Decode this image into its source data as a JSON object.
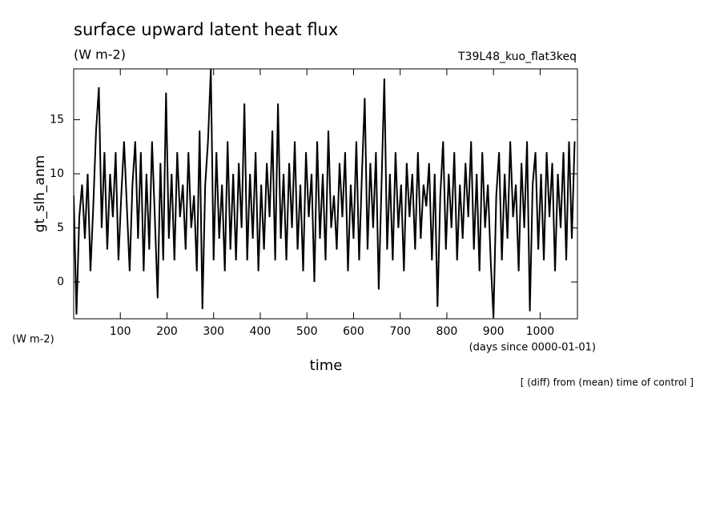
{
  "chart_data": {
    "type": "line",
    "title": "surface upward latent heat flux",
    "subtitle": "(W m-2)",
    "annotation": "T39L48_kuo_flat3keq",
    "y_label": "gt_slh_anm",
    "y_unit": "(W m-2)",
    "x_label": "time",
    "x_unit": "(days since 0000-01-01)",
    "footnote": "[ (diff) from (mean) time of control ]",
    "color": "#000000",
    "xlim": [
      0,
      1080
    ],
    "ylim": [
      -3.4,
      19.7
    ],
    "xticks": [
      100,
      200,
      300,
      400,
      500,
      600,
      700,
      800,
      900,
      1000
    ],
    "yticks": [
      0,
      5,
      10,
      15
    ],
    "x": [
      0,
      6,
      12,
      18,
      24,
      30,
      36,
      42,
      48,
      54,
      60,
      66,
      72,
      78,
      84,
      90,
      96,
      102,
      108,
      114,
      120,
      126,
      132,
      138,
      144,
      150,
      156,
      162,
      168,
      174,
      180,
      186,
      192,
      198,
      204,
      210,
      216,
      222,
      228,
      234,
      240,
      246,
      252,
      258,
      264,
      270,
      276,
      282,
      288,
      294,
      300,
      306,
      312,
      318,
      324,
      330,
      336,
      342,
      348,
      354,
      360,
      366,
      372,
      378,
      384,
      390,
      396,
      402,
      408,
      414,
      420,
      426,
      432,
      438,
      444,
      450,
      456,
      462,
      468,
      474,
      480,
      486,
      492,
      498,
      504,
      510,
      516,
      522,
      528,
      534,
      540,
      546,
      552,
      558,
      564,
      570,
      576,
      582,
      588,
      594,
      600,
      606,
      612,
      618,
      624,
      630,
      636,
      642,
      648,
      654,
      660,
      666,
      672,
      678,
      684,
      690,
      696,
      702,
      708,
      714,
      720,
      726,
      732,
      738,
      744,
      750,
      756,
      762,
      768,
      774,
      780,
      786,
      792,
      798,
      804,
      810,
      816,
      822,
      828,
      834,
      840,
      846,
      852,
      858,
      864,
      870,
      876,
      882,
      888,
      894,
      900,
      906,
      912,
      918,
      924,
      930,
      936,
      942,
      948,
      954,
      960,
      966,
      972,
      978,
      984,
      990,
      996,
      1002,
      1008,
      1014,
      1020,
      1026,
      1032,
      1038,
      1044,
      1050,
      1056,
      1062,
      1068,
      1074
    ],
    "values": [
      8,
      -3,
      6,
      9,
      4,
      10,
      1,
      7,
      14,
      18,
      5,
      12,
      3,
      10,
      6,
      12,
      2,
      8,
      13,
      7,
      1,
      9,
      13,
      4,
      12,
      1,
      10,
      3,
      13,
      6,
      -1.5,
      11,
      2,
      17.5,
      4,
      10,
      2,
      12,
      6,
      9,
      3,
      12,
      5,
      8,
      1,
      14,
      -2.5,
      9,
      13,
      19.7,
      2,
      12,
      4,
      9,
      1,
      13,
      3,
      10,
      2,
      11,
      5,
      16.5,
      2,
      10,
      4,
      12,
      1,
      9,
      3,
      11,
      6,
      14,
      2,
      16.5,
      4,
      10,
      2,
      11,
      5,
      13,
      3,
      9,
      1,
      12,
      6,
      10,
      0,
      13,
      4,
      10,
      2,
      14,
      5,
      8,
      3,
      11,
      6,
      12,
      1,
      9,
      4,
      13,
      2,
      10,
      17,
      3,
      11,
      5,
      12,
      -0.7,
      9,
      18.8,
      3,
      10,
      2,
      12,
      5,
      9,
      1,
      11,
      6,
      10,
      3,
      12,
      4,
      9,
      7,
      11,
      2,
      10,
      -2.3,
      8,
      13,
      3,
      10,
      5,
      12,
      2,
      9,
      4,
      11,
      6,
      13,
      3,
      10,
      1,
      12,
      5,
      9,
      2,
      -3.3,
      8,
      12,
      2,
      10,
      4,
      13,
      6,
      9,
      1,
      11,
      5,
      13,
      -2.7,
      9,
      12,
      3,
      10,
      2,
      12,
      6,
      11,
      1,
      10,
      5,
      12,
      2,
      13,
      4,
      13
    ]
  }
}
